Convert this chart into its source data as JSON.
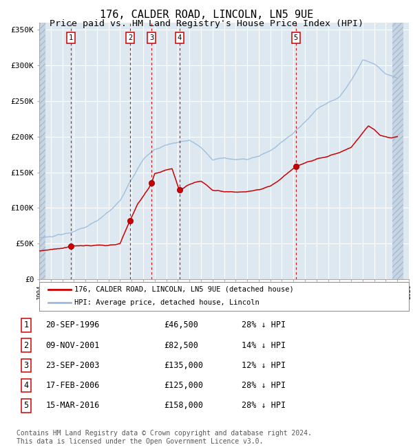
{
  "title": "176, CALDER ROAD, LINCOLN, LN5 9UE",
  "subtitle": "Price paid vs. HM Land Registry's House Price Index (HPI)",
  "title_fontsize": 11,
  "subtitle_fontsize": 9.5,
  "ylim": [
    0,
    360000
  ],
  "yticks": [
    0,
    50000,
    100000,
    150000,
    200000,
    250000,
    300000,
    350000
  ],
  "ytick_labels": [
    "£0",
    "£50K",
    "£100K",
    "£150K",
    "£200K",
    "£250K",
    "£300K",
    "£350K"
  ],
  "x_start_year": 1994,
  "x_end_year": 2025,
  "sale_dates_decimal": [
    1996.72,
    2001.86,
    2003.73,
    2006.13,
    2016.21
  ],
  "sale_prices": [
    46500,
    82500,
    135000,
    125000,
    158000
  ],
  "sale_labels": [
    "1",
    "2",
    "3",
    "4",
    "5"
  ],
  "vline_color": "#cc0000",
  "red_line_color": "#cc0000",
  "hpi_line_color": "#99bbdd",
  "background_plot": "#dde8f0",
  "hatch_color": "#c5d5e5",
  "grid_color": "#ffffff",
  "legend_label_red": "176, CALDER ROAD, LINCOLN, LN5 9UE (detached house)",
  "legend_label_blue": "HPI: Average price, detached house, Lincoln",
  "table_rows": [
    [
      "1",
      "20-SEP-1996",
      "£46,500",
      "28% ↓ HPI"
    ],
    [
      "2",
      "09-NOV-2001",
      "£82,500",
      "14% ↓ HPI"
    ],
    [
      "3",
      "23-SEP-2003",
      "£135,000",
      "12% ↓ HPI"
    ],
    [
      "4",
      "17-FEB-2006",
      "£125,000",
      "28% ↓ HPI"
    ],
    [
      "5",
      "15-MAR-2016",
      "£158,000",
      "28% ↓ HPI"
    ]
  ],
  "footnote": "Contains HM Land Registry data © Crown copyright and database right 2024.\nThis data is licensed under the Open Government Licence v3.0.",
  "footnote_fontsize": 7,
  "hpi_keypoints_x": [
    1994.0,
    1995.0,
    1996.0,
    1997.0,
    1998.0,
    1999.0,
    2000.0,
    2001.0,
    2002.0,
    2003.0,
    2004.0,
    2005.0,
    2006.0,
    2007.0,
    2008.0,
    2009.0,
    2010.0,
    2011.0,
    2012.0,
    2013.0,
    2014.0,
    2015.0,
    2016.0,
    2017.0,
    2018.0,
    2019.0,
    2020.0,
    2021.0,
    2022.0,
    2023.0,
    2024.0,
    2025.0
  ],
  "hpi_keypoints_y": [
    58000,
    60000,
    63000,
    67000,
    73000,
    82000,
    95000,
    110000,
    140000,
    168000,
    182000,
    188000,
    192000,
    195000,
    185000,
    168000,
    170000,
    168000,
    168000,
    172000,
    180000,
    192000,
    205000,
    220000,
    238000,
    248000,
    255000,
    278000,
    308000,
    302000,
    288000,
    282000
  ],
  "red_keypoints_x": [
    1994.0,
    1995.0,
    1996.0,
    1996.72,
    1997.5,
    1998.5,
    1999.5,
    2000.5,
    2001.0,
    2001.86,
    2002.5,
    2003.5,
    2003.73,
    2004.0,
    2005.0,
    2005.5,
    2006.13,
    2006.5,
    2007.0,
    2007.5,
    2008.0,
    2008.5,
    2009.0,
    2010.0,
    2011.0,
    2012.0,
    2013.0,
    2014.0,
    2015.0,
    2016.21,
    2017.0,
    2018.0,
    2019.0,
    2020.0,
    2021.0,
    2022.0,
    2022.5,
    2023.0,
    2023.5,
    2024.0,
    2024.5,
    2025.0
  ],
  "red_keypoints_y": [
    40000,
    42000,
    44000,
    46500,
    47000,
    47500,
    47800,
    48500,
    50000,
    82500,
    105000,
    128000,
    135000,
    148000,
    153000,
    155000,
    125000,
    128000,
    133000,
    136000,
    138000,
    132000,
    125000,
    123000,
    122000,
    123000,
    125000,
    130000,
    142000,
    158000,
    163000,
    168000,
    172000,
    178000,
    185000,
    205000,
    215000,
    210000,
    202000,
    200000,
    198000,
    200000
  ]
}
